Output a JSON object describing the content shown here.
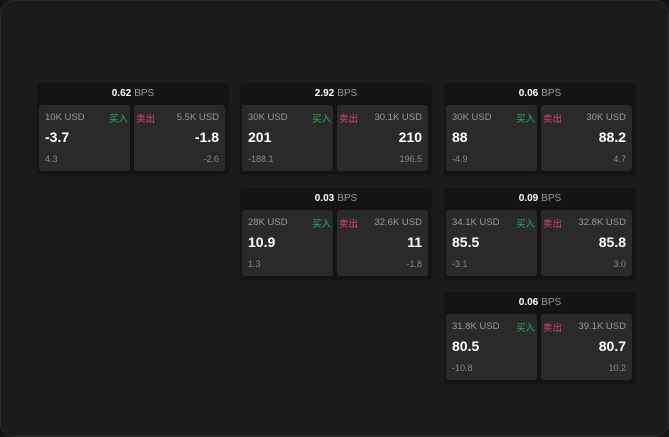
{
  "unit_label": "BPS",
  "buy_label": "买入",
  "sell_label": "卖出",
  "colors": {
    "buy": "#2fae5f",
    "sell": "#e0436b",
    "background": "#1b1b1b"
  },
  "cards": [
    {
      "spread": "0.62",
      "bid_qty": "10K USD",
      "bid": "-3.7",
      "bid_change": "4.3",
      "ask_qty": "5.5K USD",
      "ask": "-1.8",
      "ask_change": "-2.6"
    },
    {
      "spread": "2.92",
      "bid_qty": "30K USD",
      "bid": "201",
      "bid_change": "-188.1",
      "ask_qty": "30.1K USD",
      "ask": "210",
      "ask_change": "196.5"
    },
    {
      "spread": "0.06",
      "bid_qty": "30K USD",
      "bid": "88",
      "bid_change": "-4.9",
      "ask_qty": "30K USD",
      "ask": "88.2",
      "ask_change": "4.7"
    },
    {
      "spread": "0.03",
      "bid_qty": "28K USD",
      "bid": "10.9",
      "bid_change": "1.3",
      "ask_qty": "32.6K USD",
      "ask": "11",
      "ask_change": "-1.8"
    },
    {
      "spread": "0.09",
      "bid_qty": "34.1K USD",
      "bid": "85.5",
      "bid_change": "-3.1",
      "ask_qty": "32.8K USD",
      "ask": "85.8",
      "ask_change": "3.0"
    },
    {
      "spread": "0.06",
      "bid_qty": "31.8K USD",
      "bid": "80.5",
      "bid_change": "-10.8",
      "ask_qty": "39.1K USD",
      "ask": "80.7",
      "ask_change": "10.2"
    }
  ]
}
